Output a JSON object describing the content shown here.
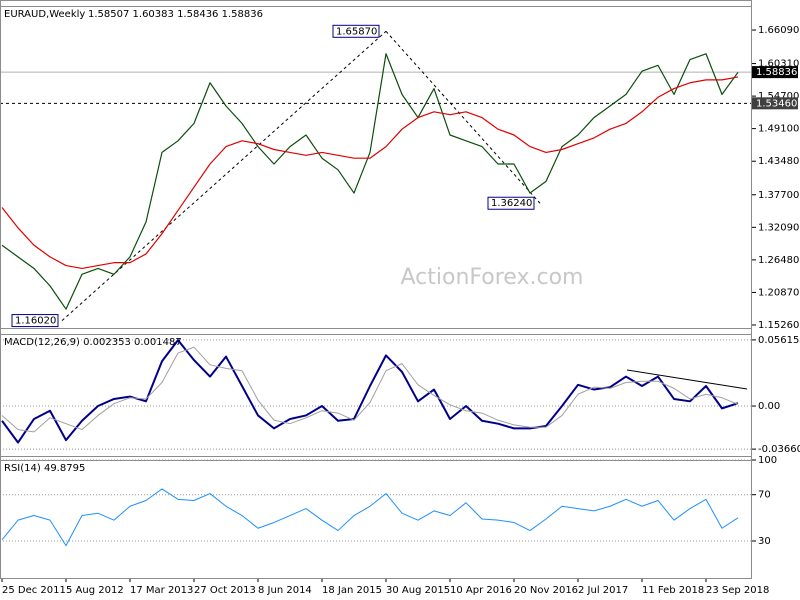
{
  "watermark": "ActionForex.com",
  "chart_data": [
    {
      "type": "line",
      "title": "EURAUD,Weekly",
      "subtitle": "1.58507 1.60383 1.58436 1.58836",
      "categories": [
        "25 Dec 2011",
        null,
        null,
        null,
        "5 Aug 2012",
        null,
        null,
        null,
        "17 Mar 2013",
        null,
        null,
        null,
        "27 Oct 2013",
        null,
        null,
        null,
        "8 Jun 2014",
        null,
        null,
        null,
        "18 Jan 2015",
        null,
        null,
        null,
        "30 Aug 2015",
        null,
        null,
        null,
        "10 Apr 2016",
        null,
        null,
        null,
        "20 Nov 2016",
        null,
        null,
        null,
        "2 Jul 2017",
        null,
        null,
        null,
        "11 Feb 2018",
        null,
        null,
        null,
        "23 Sep 2018",
        null,
        null
      ],
      "ylim": [
        1.1474,
        1.7023
      ],
      "yticks": [
        {
          "value": 1.6609,
          "label": "1.66090"
        },
        {
          "value": 1.6031,
          "label": "1.60310"
        },
        {
          "value": 1.547,
          "label": "1.54700"
        },
        {
          "value": 1.491,
          "label": "1.49100"
        },
        {
          "value": 1.4348,
          "label": "1.43480"
        },
        {
          "value": 1.377,
          "label": "1.37700"
        },
        {
          "value": 1.3209,
          "label": "1.32090"
        },
        {
          "value": 1.2648,
          "label": "1.26480"
        },
        {
          "value": 1.2087,
          "label": "1.20870"
        },
        {
          "value": 1.1526,
          "label": "1.15260"
        }
      ],
      "grid": false,
      "series": [
        {
          "color": "#0b4f0b",
          "values": [
            1.29,
            1.27,
            1.25,
            1.22,
            1.18,
            1.24,
            1.25,
            1.24,
            1.27,
            1.33,
            1.45,
            1.47,
            1.5,
            1.57,
            1.53,
            1.5,
            1.46,
            1.43,
            1.46,
            1.48,
            1.44,
            1.42,
            1.38,
            1.45,
            1.62,
            1.55,
            1.51,
            1.56,
            1.48,
            1.47,
            1.46,
            1.43,
            1.43,
            1.38,
            1.4,
            1.46,
            1.48,
            1.51,
            1.53,
            1.55,
            1.59,
            1.6,
            1.55,
            1.61,
            1.62,
            1.55,
            1.588
          ]
        },
        {
          "color": "#e00000",
          "values": [
            1.355,
            1.32,
            1.29,
            1.27,
            1.255,
            1.25,
            1.255,
            1.26,
            1.26,
            1.275,
            1.31,
            1.35,
            1.39,
            1.43,
            1.46,
            1.47,
            1.465,
            1.455,
            1.45,
            1.445,
            1.45,
            1.445,
            1.44,
            1.44,
            1.46,
            1.49,
            1.51,
            1.52,
            1.515,
            1.52,
            1.51,
            1.49,
            1.48,
            1.46,
            1.45,
            1.455,
            1.465,
            1.475,
            1.49,
            1.5,
            1.52,
            1.545,
            1.56,
            1.57,
            1.575,
            1.575,
            1.58
          ]
        }
      ],
      "levels": [
        {
          "value": 1.58836,
          "label": "1.58836",
          "style": "solid",
          "color": "#000000"
        },
        {
          "value": 1.5346,
          "label": "1.53460",
          "style": "dashed",
          "color": "#404040"
        }
      ],
      "annotations": [
        {
          "value": 1.6587,
          "label": "1.65870"
        },
        {
          "value": 1.3624,
          "label": "1.36240"
        },
        {
          "value": 1.1602,
          "label": "1.16020"
        }
      ]
    },
    {
      "type": "line",
      "title": "MACD(12,26,9) 0.002353 0.001487",
      "ylim": [
        -0.04245,
        0.06117
      ],
      "yticks": [
        0.056154,
        {
          "value": 0,
          "label": "0.00"
        },
        -0.036601
      ],
      "grid": true,
      "series": [
        {
          "color": "#00008b",
          "width": 2,
          "values": [
            -0.0125,
            -0.031,
            -0.011,
            -0.004,
            -0.029,
            -0.0125,
            0.0,
            0.006,
            0.008,
            0.004,
            0.038,
            0.056,
            0.039,
            0.025,
            0.042,
            0.017,
            -0.008,
            -0.019,
            -0.011,
            -0.008,
            0.0,
            -0.0125,
            -0.011,
            0.017,
            0.043,
            0.029,
            0.004,
            0.014,
            -0.011,
            0.0,
            -0.0125,
            -0.015,
            -0.019,
            -0.019,
            -0.017,
            0.0,
            0.018,
            0.014,
            0.016,
            0.025,
            0.017,
            0.025,
            0.006,
            0.004,
            0.017,
            -0.002,
            0.0024
          ]
        },
        {
          "color": "#a0a0a0",
          "width": 1,
          "values": [
            -0.008,
            -0.02,
            -0.022,
            -0.01,
            -0.015,
            -0.02,
            -0.008,
            0.002,
            0.007,
            0.006,
            0.02,
            0.045,
            0.05,
            0.035,
            0.032,
            0.03,
            0.005,
            -0.012,
            -0.015,
            -0.01,
            -0.004,
            -0.006,
            -0.012,
            0.003,
            0.03,
            0.036,
            0.018,
            0.009,
            0.001,
            -0.004,
            -0.006,
            -0.012,
            -0.016,
            -0.018,
            -0.018,
            -0.008,
            0.01,
            0.016,
            0.015,
            0.02,
            0.021,
            0.021,
            0.015,
            0.006,
            0.01,
            0.007,
            0.0015
          ]
        }
      ]
    },
    {
      "type": "line",
      "title": "RSI(14) 49.8795",
      "ylim": [
        -2,
        100
      ],
      "yticks": [
        100,
        70,
        30
      ],
      "grid": true,
      "series": [
        {
          "color": "#1e90ff",
          "width": 1,
          "values": [
            31,
            48,
            52,
            48,
            26,
            52,
            54,
            48,
            60,
            65,
            75,
            66,
            65,
            71,
            60,
            52,
            41,
            46,
            52,
            58,
            48,
            39,
            52,
            60,
            71,
            54,
            48,
            56,
            52,
            63,
            49,
            48,
            46,
            39,
            49,
            60,
            58,
            56,
            60,
            66,
            60,
            65,
            48,
            58,
            66,
            41,
            50
          ]
        }
      ]
    }
  ]
}
